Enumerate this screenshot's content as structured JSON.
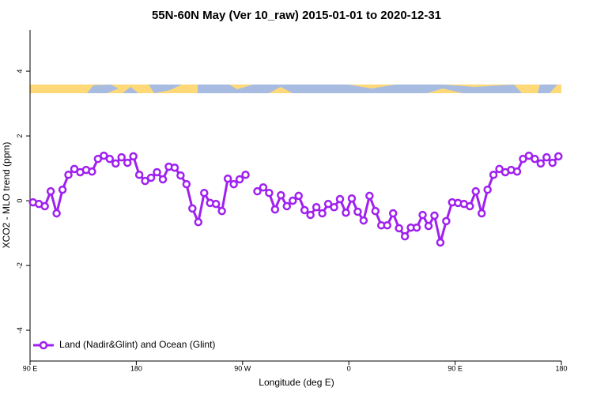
{
  "chart_data": {
    "type": "line",
    "title": "55N-60N May (Ver 10_raw)   2015-01-01 to 2020-12-31",
    "x_label": "Longitude (deg E)",
    "y_label": "XCO2 - MLO trend (ppm)",
    "xlim": [
      90,
      540
    ],
    "ylim": [
      -4.95,
      5.27
    ],
    "xticks": [
      {
        "value": 90,
        "label": "90 E"
      },
      180,
      {
        "value": 270,
        "label": "90 W"
      },
      {
        "value": 360,
        "label": "0"
      },
      {
        "value": 450,
        "label": "90 E"
      },
      {
        "value": 540,
        "label": "180"
      }
    ],
    "yticks": [
      4,
      2,
      0,
      -2,
      -4
    ],
    "legend_position": "bottom-left",
    "x": [
      92.5,
      97.5,
      102.5,
      107.5,
      112.5,
      117.5,
      122.5,
      127.5,
      132.5,
      137.5,
      142.5,
      147.5,
      152.5,
      157.5,
      162.5,
      167.5,
      172.5,
      177.5,
      182.5,
      187.5,
      192.5,
      197.5,
      202.5,
      207.5,
      212.5,
      217.5,
      222.5,
      227.5,
      232.5,
      237.5,
      242.5,
      247.5,
      252.5,
      257.5,
      262.5,
      267.5,
      272.5,
      277.5,
      282.5,
      287.5,
      292.5,
      297.5,
      302.5,
      307.5,
      312.5,
      317.5,
      322.5,
      327.5,
      332.5,
      337.5,
      342.5,
      347.5,
      352.5,
      357.5,
      362.5,
      367.5,
      372.5,
      377.5,
      382.5,
      387.5,
      392.5,
      397.5,
      402.5,
      407.5,
      412.5,
      417.5,
      422.5,
      427.5,
      432.5,
      437.5,
      442.5,
      447.5,
      452.5,
      457.5,
      462.5,
      467.5,
      472.5,
      477.5,
      482.5,
      487.5,
      492.5,
      497.5,
      502.5,
      507.5,
      512.5,
      517.5,
      522.5,
      527.5,
      532.5,
      537.5
    ],
    "series": [
      {
        "name": "Land (Nadir&Glint) and Ocean (Glint)",
        "color": "#a020f0",
        "values": [
          -0.05,
          -0.1,
          -0.17,
          0.29,
          -0.39,
          0.34,
          0.8,
          0.98,
          0.88,
          0.95,
          0.9,
          1.29,
          1.39,
          1.29,
          1.15,
          1.34,
          1.17,
          1.37,
          0.8,
          0.61,
          0.71,
          0.88,
          0.66,
          1.05,
          1.02,
          0.78,
          0.51,
          -0.24,
          -0.66,
          0.24,
          -0.07,
          -0.1,
          -0.32,
          0.68,
          0.51,
          0.66,
          0.8,
          null,
          0.29,
          0.41,
          0.24,
          -0.27,
          0.17,
          -0.17,
          0,
          0.15,
          -0.29,
          -0.44,
          -0.2,
          -0.39,
          -0.1,
          -0.2,
          0.05,
          -0.37,
          0.07,
          -0.34,
          -0.61,
          0.15,
          -0.32,
          -0.76,
          -0.76,
          -0.39,
          -0.85,
          -1.1,
          -0.83,
          -0.83,
          -0.44,
          -0.78,
          -0.46,
          -1.29,
          -0.63,
          -0.05,
          -0.07,
          -0.1,
          -0.17,
          0.29,
          -0.39,
          0.34,
          0.8,
          0.98,
          0.88,
          0.95,
          0.9,
          1.29,
          1.39,
          1.29,
          1.15,
          1.34,
          1.17,
          1.37
        ]
      }
    ]
  }
}
